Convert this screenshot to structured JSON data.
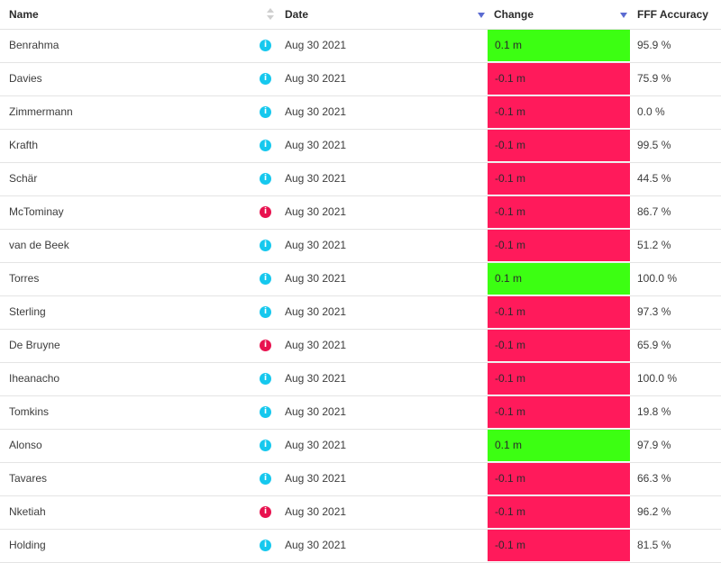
{
  "header": {
    "name": "Name",
    "date": "Date",
    "change": "Change",
    "accuracy": "FFF Accuracy"
  },
  "colors": {
    "info_blue": "#16c8ee",
    "info_red": "#e8124f",
    "change_up": "#3cff12",
    "change_down": "#ff1a5b",
    "sort_arrow": "#5b6bd1"
  },
  "rows": [
    {
      "name": "Benrahma",
      "icon": "info-icon",
      "icon_color": "blue",
      "date": "Aug 30 2021",
      "change": "0.1 m",
      "direction": "up",
      "accuracy": "95.9 %"
    },
    {
      "name": "Davies",
      "icon": "info-icon",
      "icon_color": "blue",
      "date": "Aug 30 2021",
      "change": "-0.1 m",
      "direction": "down",
      "accuracy": "75.9 %"
    },
    {
      "name": "Zimmermann",
      "icon": "info-icon",
      "icon_color": "blue",
      "date": "Aug 30 2021",
      "change": "-0.1 m",
      "direction": "down",
      "accuracy": "0.0 %"
    },
    {
      "name": "Krafth",
      "icon": "info-icon",
      "icon_color": "blue",
      "date": "Aug 30 2021",
      "change": "-0.1 m",
      "direction": "down",
      "accuracy": "99.5 %"
    },
    {
      "name": "Schär",
      "icon": "info-icon",
      "icon_color": "blue",
      "date": "Aug 30 2021",
      "change": "-0.1 m",
      "direction": "down",
      "accuracy": "44.5 %"
    },
    {
      "name": "McTominay",
      "icon": "info-icon",
      "icon_color": "red",
      "date": "Aug 30 2021",
      "change": "-0.1 m",
      "direction": "down",
      "accuracy": "86.7 %"
    },
    {
      "name": "van de Beek",
      "icon": "info-icon",
      "icon_color": "blue",
      "date": "Aug 30 2021",
      "change": "-0.1 m",
      "direction": "down",
      "accuracy": "51.2 %"
    },
    {
      "name": "Torres",
      "icon": "info-icon",
      "icon_color": "blue",
      "date": "Aug 30 2021",
      "change": "0.1 m",
      "direction": "up",
      "accuracy": "100.0 %"
    },
    {
      "name": "Sterling",
      "icon": "info-icon",
      "icon_color": "blue",
      "date": "Aug 30 2021",
      "change": "-0.1 m",
      "direction": "down",
      "accuracy": "97.3 %"
    },
    {
      "name": "De Bruyne",
      "icon": "info-icon",
      "icon_color": "red",
      "date": "Aug 30 2021",
      "change": "-0.1 m",
      "direction": "down",
      "accuracy": "65.9 %"
    },
    {
      "name": "Iheanacho",
      "icon": "info-icon",
      "icon_color": "blue",
      "date": "Aug 30 2021",
      "change": "-0.1 m",
      "direction": "down",
      "accuracy": "100.0 %"
    },
    {
      "name": "Tomkins",
      "icon": "info-icon",
      "icon_color": "blue",
      "date": "Aug 30 2021",
      "change": "-0.1 m",
      "direction": "down",
      "accuracy": "19.8 %"
    },
    {
      "name": "Alonso",
      "icon": "info-icon",
      "icon_color": "blue",
      "date": "Aug 30 2021",
      "change": "0.1 m",
      "direction": "up",
      "accuracy": "97.9 %"
    },
    {
      "name": "Tavares",
      "icon": "info-icon",
      "icon_color": "blue",
      "date": "Aug 30 2021",
      "change": "-0.1 m",
      "direction": "down",
      "accuracy": "66.3 %"
    },
    {
      "name": "Nketiah",
      "icon": "info-icon",
      "icon_color": "red",
      "date": "Aug 30 2021",
      "change": "-0.1 m",
      "direction": "down",
      "accuracy": "96.2 %"
    },
    {
      "name": "Holding",
      "icon": "info-icon",
      "icon_color": "blue",
      "date": "Aug 30 2021",
      "change": "-0.1 m",
      "direction": "down",
      "accuracy": "81.5 %"
    }
  ]
}
